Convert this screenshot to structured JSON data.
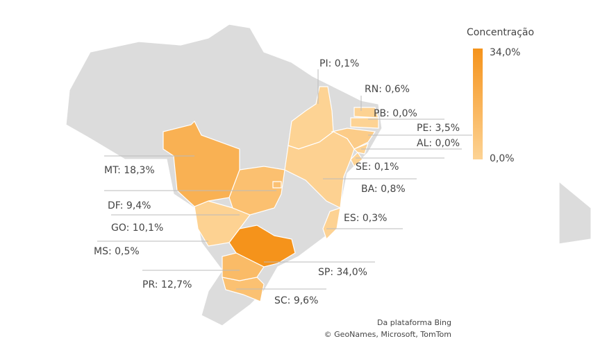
{
  "legend": {
    "title": "Concentração",
    "max": {
      "value": 34,
      "label": "34,0%"
    },
    "min": {
      "value": 0,
      "label": "0,0%"
    },
    "colors": [
      "#fdd394",
      "#f5931b"
    ]
  },
  "regions": [
    {
      "label": "PI: 0,1%",
      "value": 0.1
    },
    {
      "label": "RN: 0,6%",
      "value": 0.6
    },
    {
      "label": "PB: 0,0%",
      "value": 0
    },
    {
      "label": "PE: 3,5%",
      "value": 3.5
    },
    {
      "label": "AL: 0,0%",
      "value": 0
    },
    {
      "label": "SE: 0,1%",
      "value": 0.1
    },
    {
      "label": "BA: 0,8%",
      "value": 0.8
    },
    {
      "label": "ES: 0,3%",
      "value": 0.3
    },
    {
      "label": "SP: 34,0%",
      "value": 34
    },
    {
      "label": "SC: 9,6%",
      "value": 9.6
    },
    {
      "label": "PR: 12,7%",
      "value": 12.7
    },
    {
      "label": "MS: 0,5%",
      "value": 0.5
    },
    {
      "label": "GO: 10,1%",
      "value": 10.1
    },
    {
      "label": "DF: 9,4%",
      "value": 9.4
    },
    {
      "label": "MT: 18,3%",
      "value": 18.3
    }
  ],
  "attribution": [
    "Da plataforma Bing",
    "© GeoNames, Microsoft, TomTom"
  ]
}
